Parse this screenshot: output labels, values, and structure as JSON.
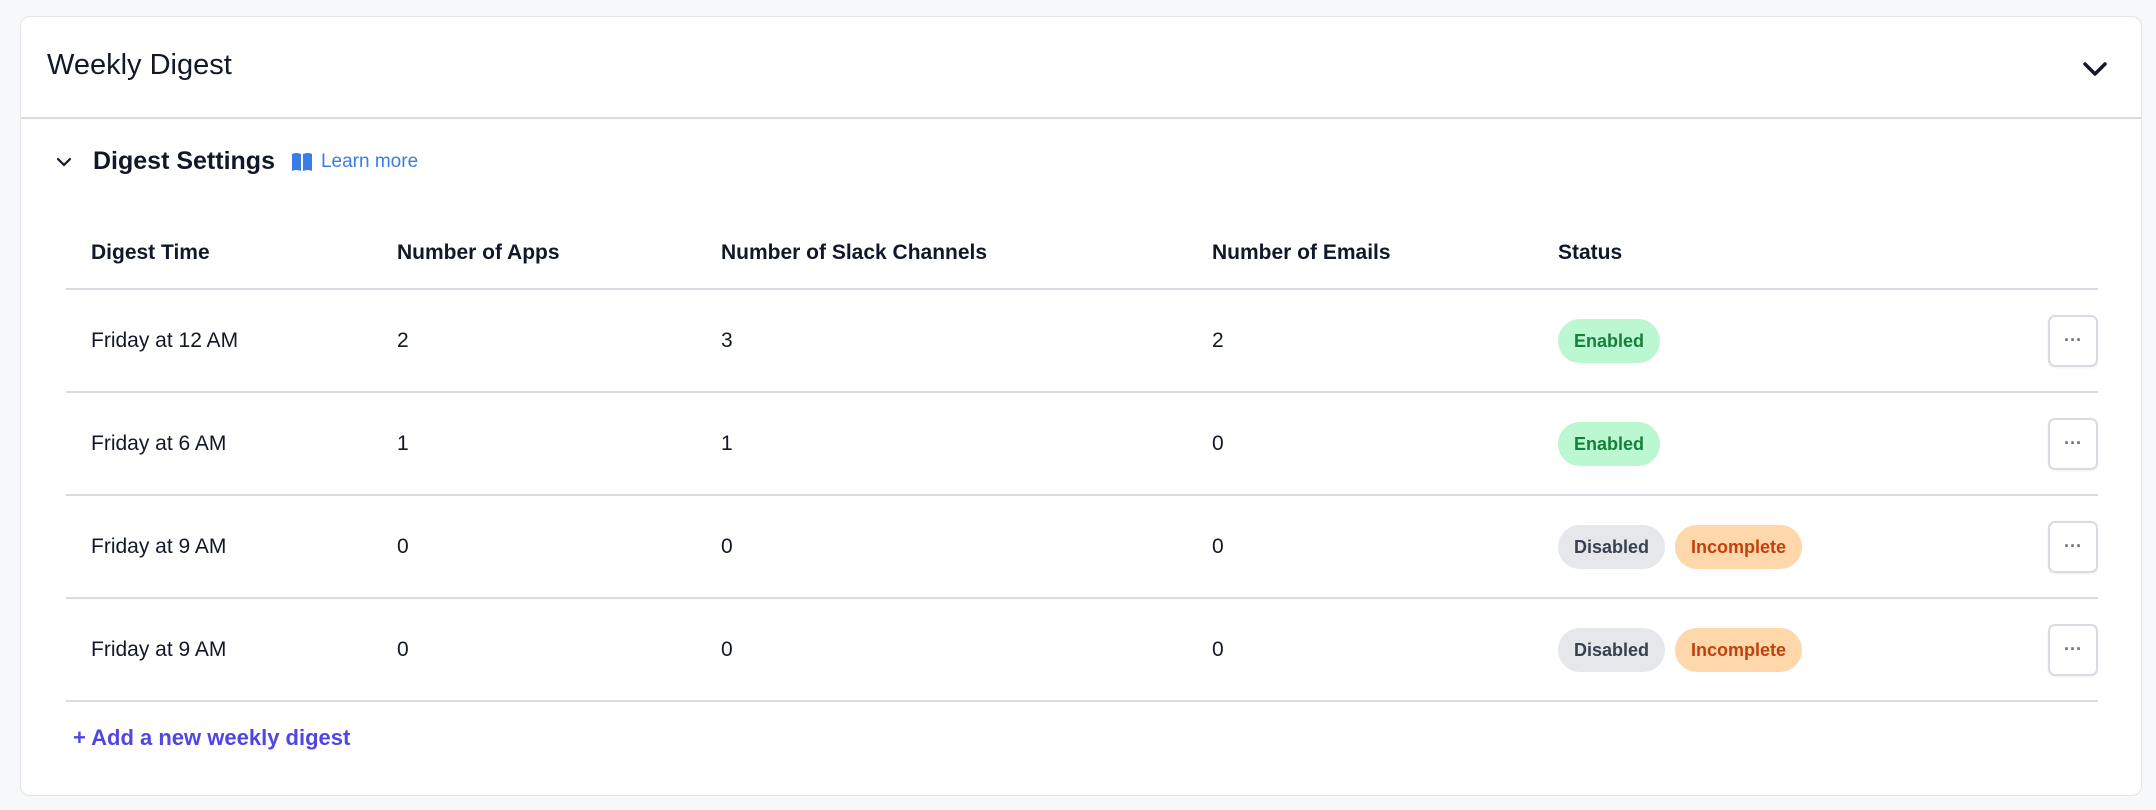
{
  "header": {
    "title": "Weekly Digest"
  },
  "section": {
    "title": "Digest Settings",
    "learn_more": "Learn more"
  },
  "table": {
    "columns": [
      "Digest Time",
      "Number of Apps",
      "Number of Slack Channels",
      "Number of Emails",
      "Status"
    ],
    "rows": [
      {
        "time": "Friday at 12 AM",
        "apps": "2",
        "slack": "3",
        "emails": "2",
        "status": [
          "Enabled"
        ]
      },
      {
        "time": "Friday at 6 AM",
        "apps": "1",
        "slack": "1",
        "emails": "0",
        "status": [
          "Enabled"
        ]
      },
      {
        "time": "Friday at 9 AM",
        "apps": "0",
        "slack": "0",
        "emails": "0",
        "status": [
          "Disabled",
          "Incomplete"
        ]
      },
      {
        "time": "Friday at 9 AM",
        "apps": "0",
        "slack": "0",
        "emails": "0",
        "status": [
          "Disabled",
          "Incomplete"
        ]
      }
    ],
    "more_label": "···"
  },
  "add_link": "+ Add a new weekly digest",
  "colors": {
    "enabled_bg": "#bbf7d0",
    "enabled_text": "#15803d",
    "disabled_bg": "#e5e7eb",
    "incomplete_bg": "#fed7aa",
    "incomplete_text": "#c2410c",
    "link": "#4f46e5",
    "learn_more": "#3b7ce8"
  }
}
